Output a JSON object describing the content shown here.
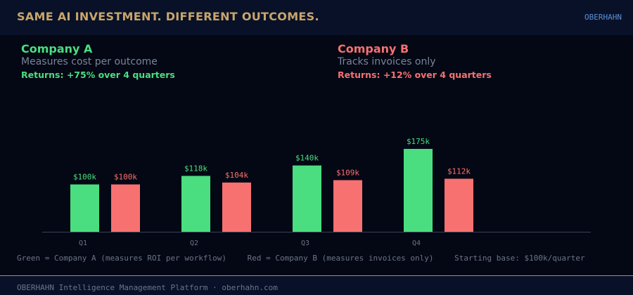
{
  "header": {
    "title": "SAME AI INVESTMENT. DIFFERENT OUTCOMES.",
    "brand": "OBERHAHN"
  },
  "companies": [
    {
      "name": "Company A",
      "description": "Measures cost per outcome",
      "returns": "Returns: +75% over 4 quarters",
      "color": "#4ade80"
    },
    {
      "name": "Company B",
      "description": "Tracks invoices only",
      "returns": "Returns: +12% over 4 quarters",
      "color": "#f87171"
    }
  ],
  "chart_data": {
    "type": "bar",
    "categories": [
      "Q1",
      "Q2",
      "Q3",
      "Q4"
    ],
    "series": [
      {
        "name": "Company A",
        "values": [
          100,
          118,
          140,
          175
        ],
        "labels": [
          "$100k",
          "$118k",
          "$140k",
          "$175k"
        ],
        "color": "#4ade80"
      },
      {
        "name": "Company B",
        "values": [
          100,
          104,
          109,
          112
        ],
        "labels": [
          "$100k",
          "$104k",
          "$109k",
          "$112k"
        ],
        "color": "#f87171"
      }
    ],
    "title": "",
    "xlabel": "",
    "ylabel": "",
    "ylim": [
      0,
      175
    ],
    "grid": false
  },
  "legend": {
    "green": "Green = Company A (measures ROI per workflow)",
    "red": "Red = Company B (measures invoices only)",
    "base": "Starting base: $100k/quarter"
  },
  "footer": {
    "text": "OBERHAHN Intelligence Management Platform  ·  oberhahn.com"
  }
}
